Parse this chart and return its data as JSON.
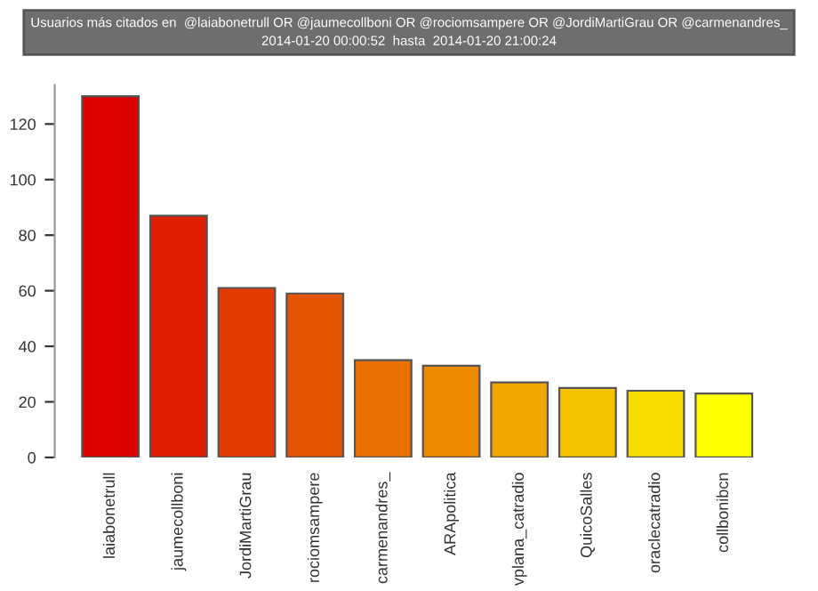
{
  "chart_data": {
    "type": "bar",
    "title": "Usuarios más citados en  @laiabonetrull OR @jaumecollboni OR @rociomsampere OR @JordiMartiGrau OR @carmenandres_",
    "subtitle": "2014-01-20 00:00:52  hasta  2014-01-20 21:00:24",
    "categories": [
      "laiabonetrull",
      "jaumecollboni",
      "JordiMartiGrau",
      "rociomsampere",
      "carmenandres_",
      "ARApolitica",
      "vplana_catradio",
      "QuicoSalles",
      "oraclecatradio",
      "collbonibcn"
    ],
    "values": [
      130,
      87,
      61,
      59,
      35,
      33,
      27,
      25,
      24,
      23
    ],
    "colors": [
      "#dd0000",
      "#e01e00",
      "#e23a00",
      "#e55400",
      "#ea7000",
      "#ee8a00",
      "#f0a600",
      "#f5c200",
      "#fadd00",
      "#ffff00"
    ],
    "ylim": [
      0,
      134
    ],
    "yticks": [
      0,
      20,
      40,
      60,
      80,
      100,
      120
    ],
    "grid": false,
    "legend": false
  }
}
